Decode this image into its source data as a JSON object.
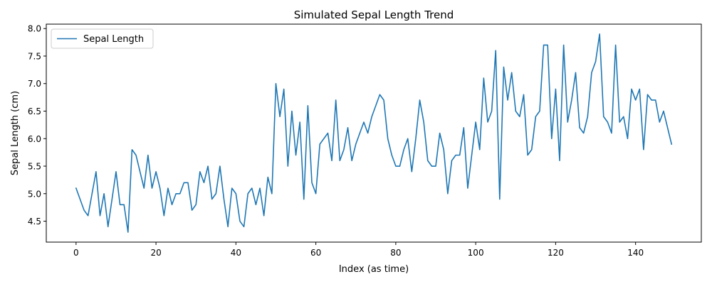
{
  "chart_data": {
    "type": "line",
    "title": "Simulated Sepal Length Trend",
    "xlabel": "Index (as time)",
    "ylabel": "Sepal Length (cm)",
    "xlim": [
      -7.45,
      156.45
    ],
    "ylim": [
      4.12,
      8.08
    ],
    "xticks": [
      0,
      20,
      40,
      60,
      80,
      100,
      120,
      140
    ],
    "yticks": [
      4.5,
      5.0,
      5.5,
      6.0,
      6.5,
      7.0,
      7.5,
      8.0
    ],
    "ytick_labels": [
      "4.5",
      "5.0",
      "5.5",
      "6.0",
      "6.5",
      "7.0",
      "7.5",
      "8.0"
    ],
    "grid": false,
    "legend_position": "upper-left",
    "series": [
      {
        "name": "Sepal Length",
        "color": "#1f77b4",
        "values": [
          5.1,
          4.9,
          4.7,
          4.6,
          5.0,
          5.4,
          4.6,
          5.0,
          4.4,
          4.9,
          5.4,
          4.8,
          4.8,
          4.3,
          5.8,
          5.7,
          5.4,
          5.1,
          5.7,
          5.1,
          5.4,
          5.1,
          4.6,
          5.1,
          4.8,
          5.0,
          5.0,
          5.2,
          5.2,
          4.7,
          4.8,
          5.4,
          5.2,
          5.5,
          4.9,
          5.0,
          5.5,
          4.9,
          4.4,
          5.1,
          5.0,
          4.5,
          4.4,
          5.0,
          5.1,
          4.8,
          5.1,
          4.6,
          5.3,
          5.0,
          7.0,
          6.4,
          6.9,
          5.5,
          6.5,
          5.7,
          6.3,
          4.9,
          6.6,
          5.2,
          5.0,
          5.9,
          6.0,
          6.1,
          5.6,
          6.7,
          5.6,
          5.8,
          6.2,
          5.6,
          5.9,
          6.1,
          6.3,
          6.1,
          6.4,
          6.6,
          6.8,
          6.7,
          6.0,
          5.7,
          5.5,
          5.5,
          5.8,
          6.0,
          5.4,
          6.0,
          6.7,
          6.3,
          5.6,
          5.5,
          5.5,
          6.1,
          5.8,
          5.0,
          5.6,
          5.7,
          5.7,
          6.2,
          5.1,
          5.7,
          6.3,
          5.8,
          7.1,
          6.3,
          6.5,
          7.6,
          4.9,
          7.3,
          6.7,
          7.2,
          6.5,
          6.4,
          6.8,
          5.7,
          5.8,
          6.4,
          6.5,
          7.7,
          7.7,
          6.0,
          6.9,
          5.6,
          7.7,
          6.3,
          6.7,
          7.2,
          6.2,
          6.1,
          6.4,
          7.2,
          7.4,
          7.9,
          6.4,
          6.3,
          6.1,
          7.7,
          6.3,
          6.4,
          6.0,
          6.9,
          6.7,
          6.9,
          5.8,
          6.8,
          6.7,
          6.7,
          6.3,
          6.5,
          6.2,
          5.9
        ]
      }
    ]
  }
}
